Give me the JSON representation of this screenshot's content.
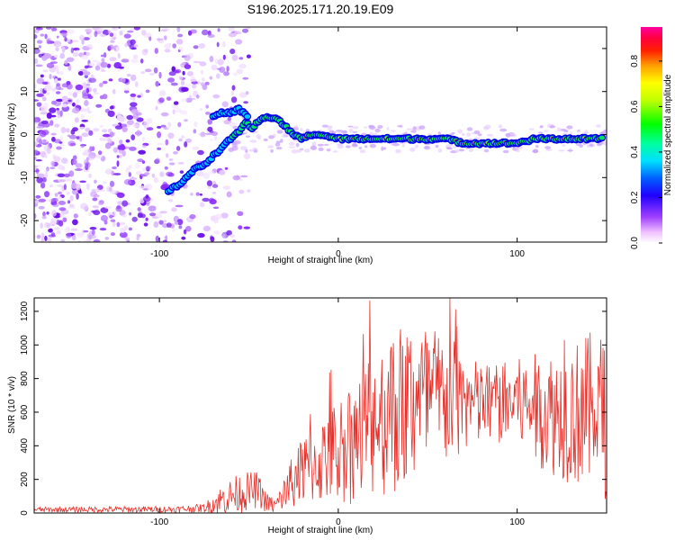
{
  "title": "S196.2025.171.20.19.E09",
  "colors": {
    "snr_line": "#e8302a",
    "spectrogram_ridge_core": "#ff2a00",
    "spectrogram_ridge_mid": "#00e060",
    "spectrogram_ridge_edge": "#0000e6",
    "spectrogram_noise": "#7a1aff"
  },
  "chart_data": [
    {
      "type": "heatmap",
      "xlabel": "Height of straight line (km)",
      "ylabel": "Frequency (Hz)",
      "xlim": [
        -170,
        150
      ],
      "ylim": [
        -25,
        25
      ],
      "xticks": [
        -100,
        0,
        100
      ],
      "yticks": [
        -20,
        -10,
        0,
        10,
        20
      ],
      "colorbar": {
        "label": "Normalized spectral amplitude",
        "ticks": [
          0.0,
          0.2,
          0.4,
          0.6,
          0.8
        ],
        "range": [
          0,
          0.95
        ],
        "colormap": "rainbow (white-magenta-purple-blue-cyan-green-yellow-orange-red-pink)"
      },
      "ridge": {
        "x": [
          -95,
          -90,
          -85,
          -80,
          -75,
          -70,
          -65,
          -60,
          -55,
          -52,
          -50,
          -48,
          -45,
          -40,
          -35,
          -30,
          -25,
          -20,
          -15,
          -10,
          0,
          10,
          20,
          30,
          40,
          50,
          60,
          70,
          80,
          90,
          100,
          110,
          120,
          130,
          140,
          148
        ],
        "y": [
          -13,
          -12,
          -10,
          -8,
          -7,
          -5,
          -3,
          -1,
          1,
          3,
          2,
          1,
          3,
          4,
          4,
          2,
          0,
          -1,
          0,
          0,
          -1,
          -1,
          -1,
          -1,
          -1,
          -1,
          -1,
          -2,
          -2,
          -2,
          -2,
          -1,
          -1,
          -1,
          -1,
          -1
        ]
      },
      "upper_branch": {
        "x": [
          -70,
          -65,
          -60,
          -56,
          -53,
          -50
        ],
        "y": [
          4,
          5,
          5,
          6,
          5,
          4
        ]
      }
    },
    {
      "type": "line",
      "xlabel": "Height of straight line (km)",
      "ylabel": "SNR (10 * v/v)",
      "xlim": [
        -170,
        150
      ],
      "ylim": [
        0,
        1280
      ],
      "xticks": [
        -100,
        0,
        100
      ],
      "yticks": [
        0,
        200,
        400,
        600,
        800,
        1000,
        1200
      ],
      "envelope": {
        "x": [
          -170,
          -90,
          -75,
          -65,
          -55,
          -45,
          -40,
          -35,
          -28,
          -20,
          -10,
          0,
          10,
          20,
          30,
          40,
          50,
          60,
          70,
          80,
          90,
          100,
          110,
          120,
          130,
          140,
          150
        ],
        "mean": [
          20,
          22,
          30,
          80,
          120,
          140,
          60,
          40,
          150,
          250,
          300,
          380,
          420,
          550,
          600,
          650,
          660,
          680,
          650,
          640,
          650,
          660,
          620,
          600,
          590,
          600,
          580
        ],
        "spread": [
          15,
          20,
          25,
          90,
          120,
          110,
          60,
          50,
          140,
          200,
          250,
          320,
          380,
          460,
          500,
          520,
          480,
          430,
          300,
          260,
          250,
          260,
          330,
          380,
          420,
          480,
          500
        ]
      }
    }
  ]
}
